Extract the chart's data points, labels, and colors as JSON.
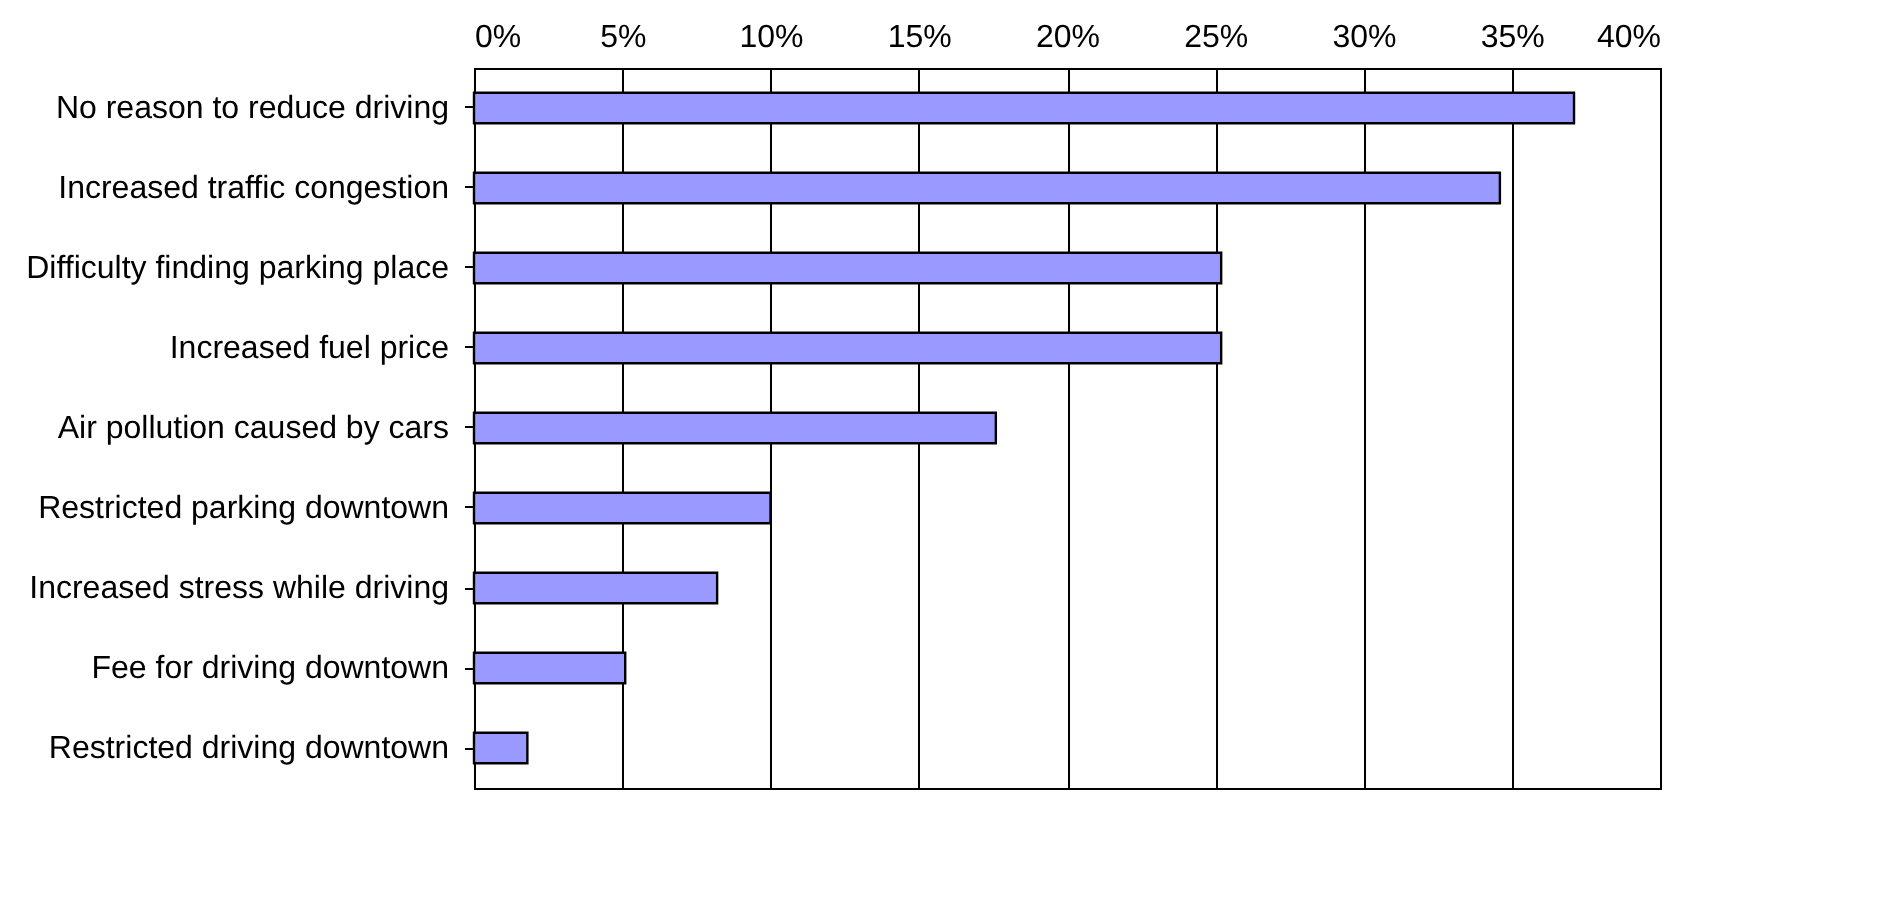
{
  "chart_data": {
    "type": "bar",
    "orientation": "horizontal",
    "categories": [
      "No reason to reduce driving",
      "Increased traffic congestion",
      "Difficulty finding parking place",
      "Increased fuel price",
      "Air pollution caused by cars",
      "Restricted parking downtown",
      "Increased stress while driving",
      "Fee for driving downtown",
      "Restricted driving downtown"
    ],
    "values": [
      37.1,
      34.6,
      25.2,
      25.2,
      17.6,
      10.0,
      8.2,
      5.1,
      1.8
    ],
    "color": "#9999ff",
    "xlim": [
      0,
      40
    ],
    "xticks": [
      {
        "value": 0,
        "label": "0%"
      },
      {
        "value": 5,
        "label": "5%"
      },
      {
        "value": 10,
        "label": "10%"
      },
      {
        "value": 15,
        "label": "15%"
      },
      {
        "value": 20,
        "label": "20%"
      },
      {
        "value": 25,
        "label": "25%"
      },
      {
        "value": 30,
        "label": "30%"
      },
      {
        "value": 35,
        "label": "35%"
      },
      {
        "value": 40,
        "label": "40%"
      }
    ],
    "grid": "x"
  }
}
